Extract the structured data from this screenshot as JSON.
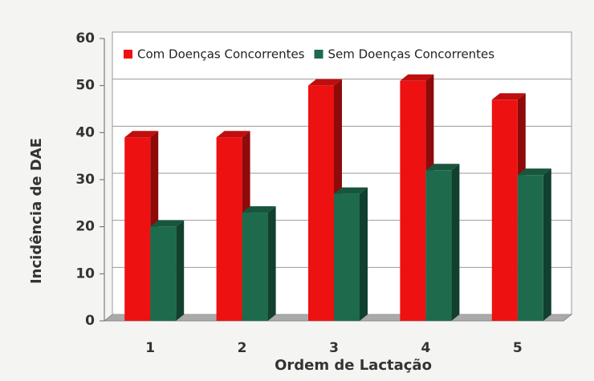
{
  "chart_data": {
    "type": "bar3d",
    "x_label": "Ordem de Lactação",
    "y_label": "Incidência de DAE",
    "categories": [
      "1",
      "2",
      "3",
      "4",
      "5"
    ],
    "series": [
      {
        "name": "Com Doenças Concorrentes",
        "color": "#ee1111",
        "values": [
          39,
          39,
          50,
          51,
          47
        ]
      },
      {
        "name": "Sem Doenças Concorrentes",
        "color": "#1d6b4c",
        "values": [
          20,
          23,
          27,
          32,
          31
        ]
      }
    ],
    "ylim": [
      0,
      60
    ],
    "yticks": [
      0,
      10,
      20,
      30,
      40,
      50,
      60
    ],
    "grid": true,
    "legend": "top"
  }
}
